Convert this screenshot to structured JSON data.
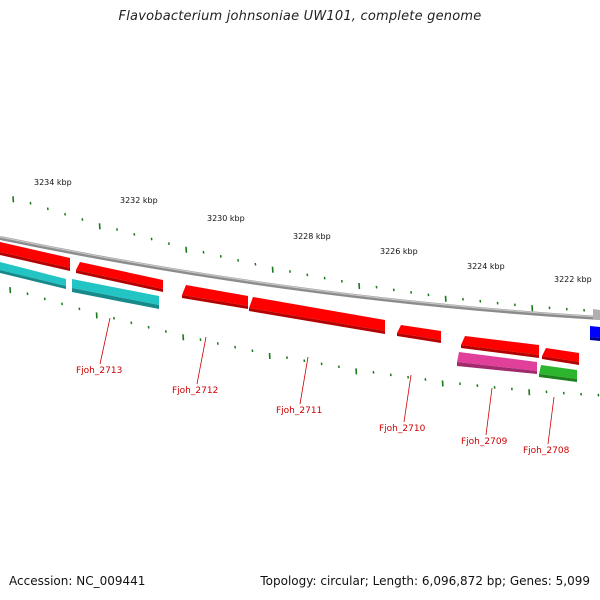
{
  "title": "Flavobacterium johnsoniae UW101, complete genome",
  "footer": {
    "accession": "Accession: NC_009441",
    "stats": "Topology: circular; Length: 6,096,872 bp; Genes: 5,099"
  },
  "colors": {
    "background": "#ffffff",
    "backbone": "#8c8c8c",
    "scale_ticks": "#1a7a1a",
    "gene_label": "#cc0000",
    "forward_gene": "#ff0000",
    "reverse_gene_cyan": "#22c4c4",
    "reverse_gene_magenta": "#e0409a",
    "reverse_gene_green": "#2db52d",
    "other_feature_blue": "#0000ff",
    "other_feature_gray": "#b0b0b0"
  },
  "scale": {
    "labels": [
      "3234 kbp",
      "3232 kbp",
      "3230 kbp",
      "3228 kbp",
      "3226 kbp",
      "3224 kbp",
      "3222 kbp"
    ]
  },
  "genes": [
    {
      "name": "Fjoh_2713",
      "color": "cyan"
    },
    {
      "name": "Fjoh_2712",
      "color": "red"
    },
    {
      "name": "Fjoh_2711",
      "color": "red"
    },
    {
      "name": "Fjoh_2710",
      "color": "red"
    },
    {
      "name": "Fjoh_2709",
      "color": "magenta"
    },
    {
      "name": "Fjoh_2708",
      "color": "green"
    }
  ]
}
